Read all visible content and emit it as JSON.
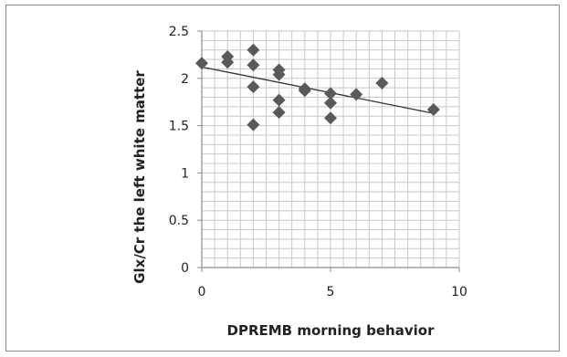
{
  "chart_data": {
    "type": "scatter",
    "title": "",
    "xlabel": "DPREMB morning behavior",
    "ylabel": "Glx/Cr the left white matter",
    "xlim": [
      0,
      10
    ],
    "ylim": [
      0,
      2.5
    ],
    "x_ticks": [
      "0",
      "5",
      "10"
    ],
    "y_ticks": [
      "0",
      "0.5",
      "1",
      "1.5",
      "2",
      "2.5"
    ],
    "grid": true,
    "legend": "none",
    "marker": "diamond",
    "colors": {
      "marker": "#595959",
      "trendline": "#333333",
      "grid": "#c8c8c8",
      "axis": "#8c8c8c"
    },
    "series": [
      {
        "points": [
          [
            0,
            2.16
          ],
          [
            1,
            2.23
          ],
          [
            1,
            2.17
          ],
          [
            2,
            2.3
          ],
          [
            2,
            2.14
          ],
          [
            2,
            1.91
          ],
          [
            2,
            1.51
          ],
          [
            3,
            2.09
          ],
          [
            3,
            2.04
          ],
          [
            3,
            1.77
          ],
          [
            3,
            1.64
          ],
          [
            4,
            1.89
          ],
          [
            4,
            1.87
          ],
          [
            5,
            1.84
          ],
          [
            5,
            1.74
          ],
          [
            5,
            1.58
          ],
          [
            6,
            1.83
          ],
          [
            7,
            1.95
          ],
          [
            9,
            1.67
          ]
        ]
      }
    ],
    "trendline": {
      "type": "linear",
      "x": [
        0,
        9
      ],
      "y": [
        2.12,
        1.63
      ]
    }
  }
}
